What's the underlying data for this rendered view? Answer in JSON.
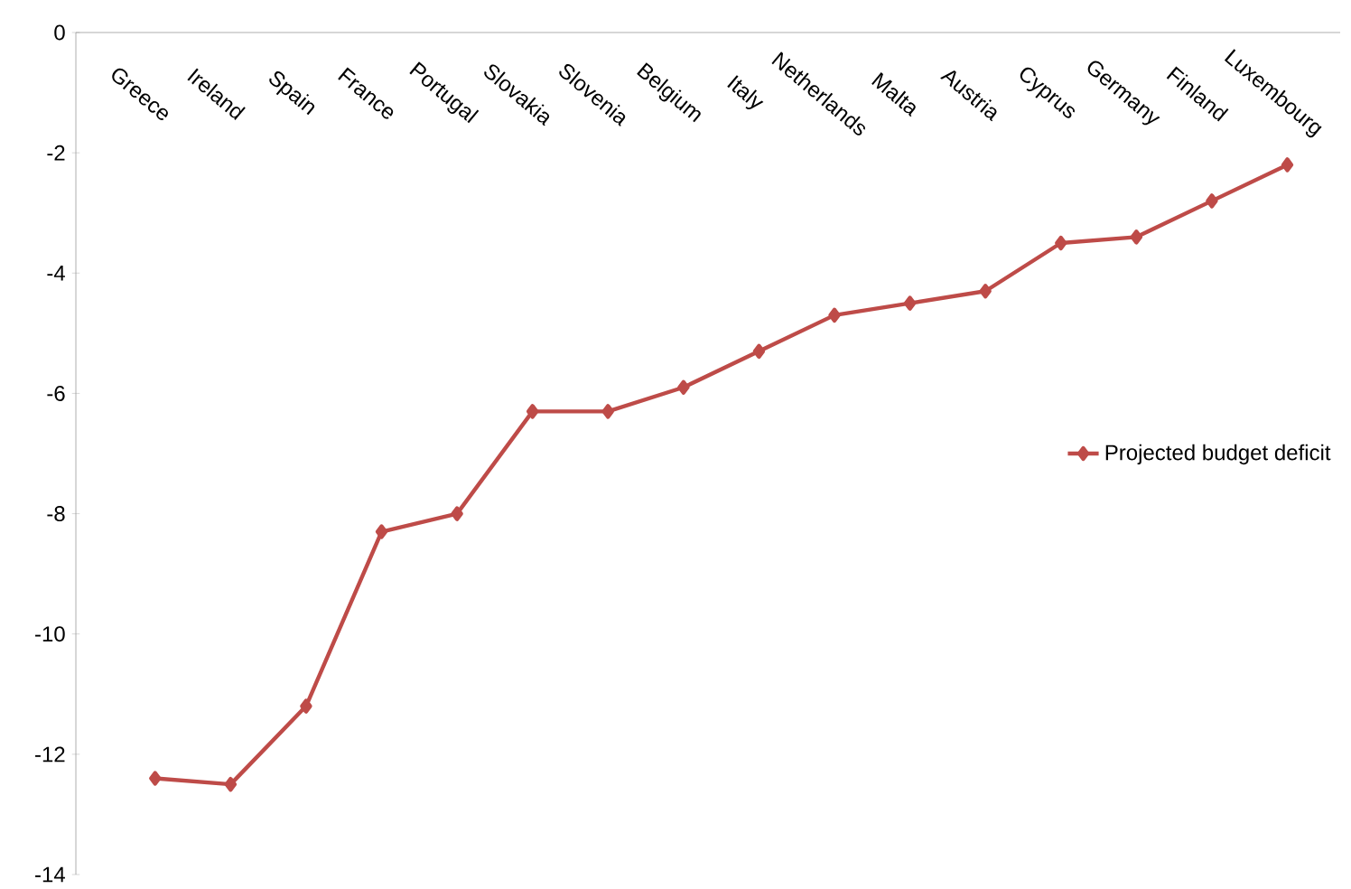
{
  "chart_data": {
    "type": "line",
    "categories": [
      "Greece",
      "Ireland",
      "Spain",
      "France",
      "Portugal",
      "Slovakia",
      "Slovenia",
      "Belgium",
      "Italy",
      "Netherlands",
      "Malta",
      "Austria",
      "Cyprus",
      "Germany",
      "Finland",
      "Luxembourg"
    ],
    "series": [
      {
        "name": "Projected budget deficit",
        "color": "#be4b48",
        "values": [
          -12.4,
          -12.5,
          -11.2,
          -8.3,
          -8.0,
          -6.3,
          -6.3,
          -5.9,
          -5.3,
          -4.7,
          -4.5,
          -4.3,
          -3.5,
          -3.4,
          -2.8,
          -2.2
        ]
      }
    ],
    "ylim": [
      -14,
      0
    ],
    "yticks": [
      -14,
      -12,
      -10,
      -8,
      -6,
      -4,
      -2,
      0
    ],
    "grid": false,
    "legend": "right",
    "marker": "diamond",
    "line_style": "solid"
  }
}
